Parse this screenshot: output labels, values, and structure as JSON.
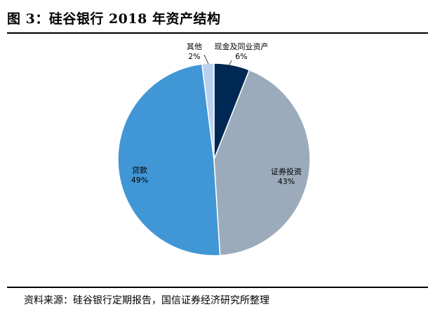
{
  "title": "图 3：硅谷银行 2018 年资产结构",
  "source": "资料来源：硅谷银行定期报告，国信证券经济研究所整理",
  "chart_data": {
    "type": "pie",
    "start_angle_deg": 0,
    "direction": "clockwise",
    "slices": [
      {
        "name": "现金及同业资产",
        "value": 6,
        "label": "6%",
        "color": "#002855"
      },
      {
        "name": "证券投资",
        "value": 43,
        "label": "43%",
        "color": "#9BABBB"
      },
      {
        "name": "贷款",
        "value": 49,
        "label": "49%",
        "color": "#4196D6"
      },
      {
        "name": "其他",
        "value": 2,
        "label": "2%",
        "color": "#B9D1EE"
      }
    ]
  }
}
